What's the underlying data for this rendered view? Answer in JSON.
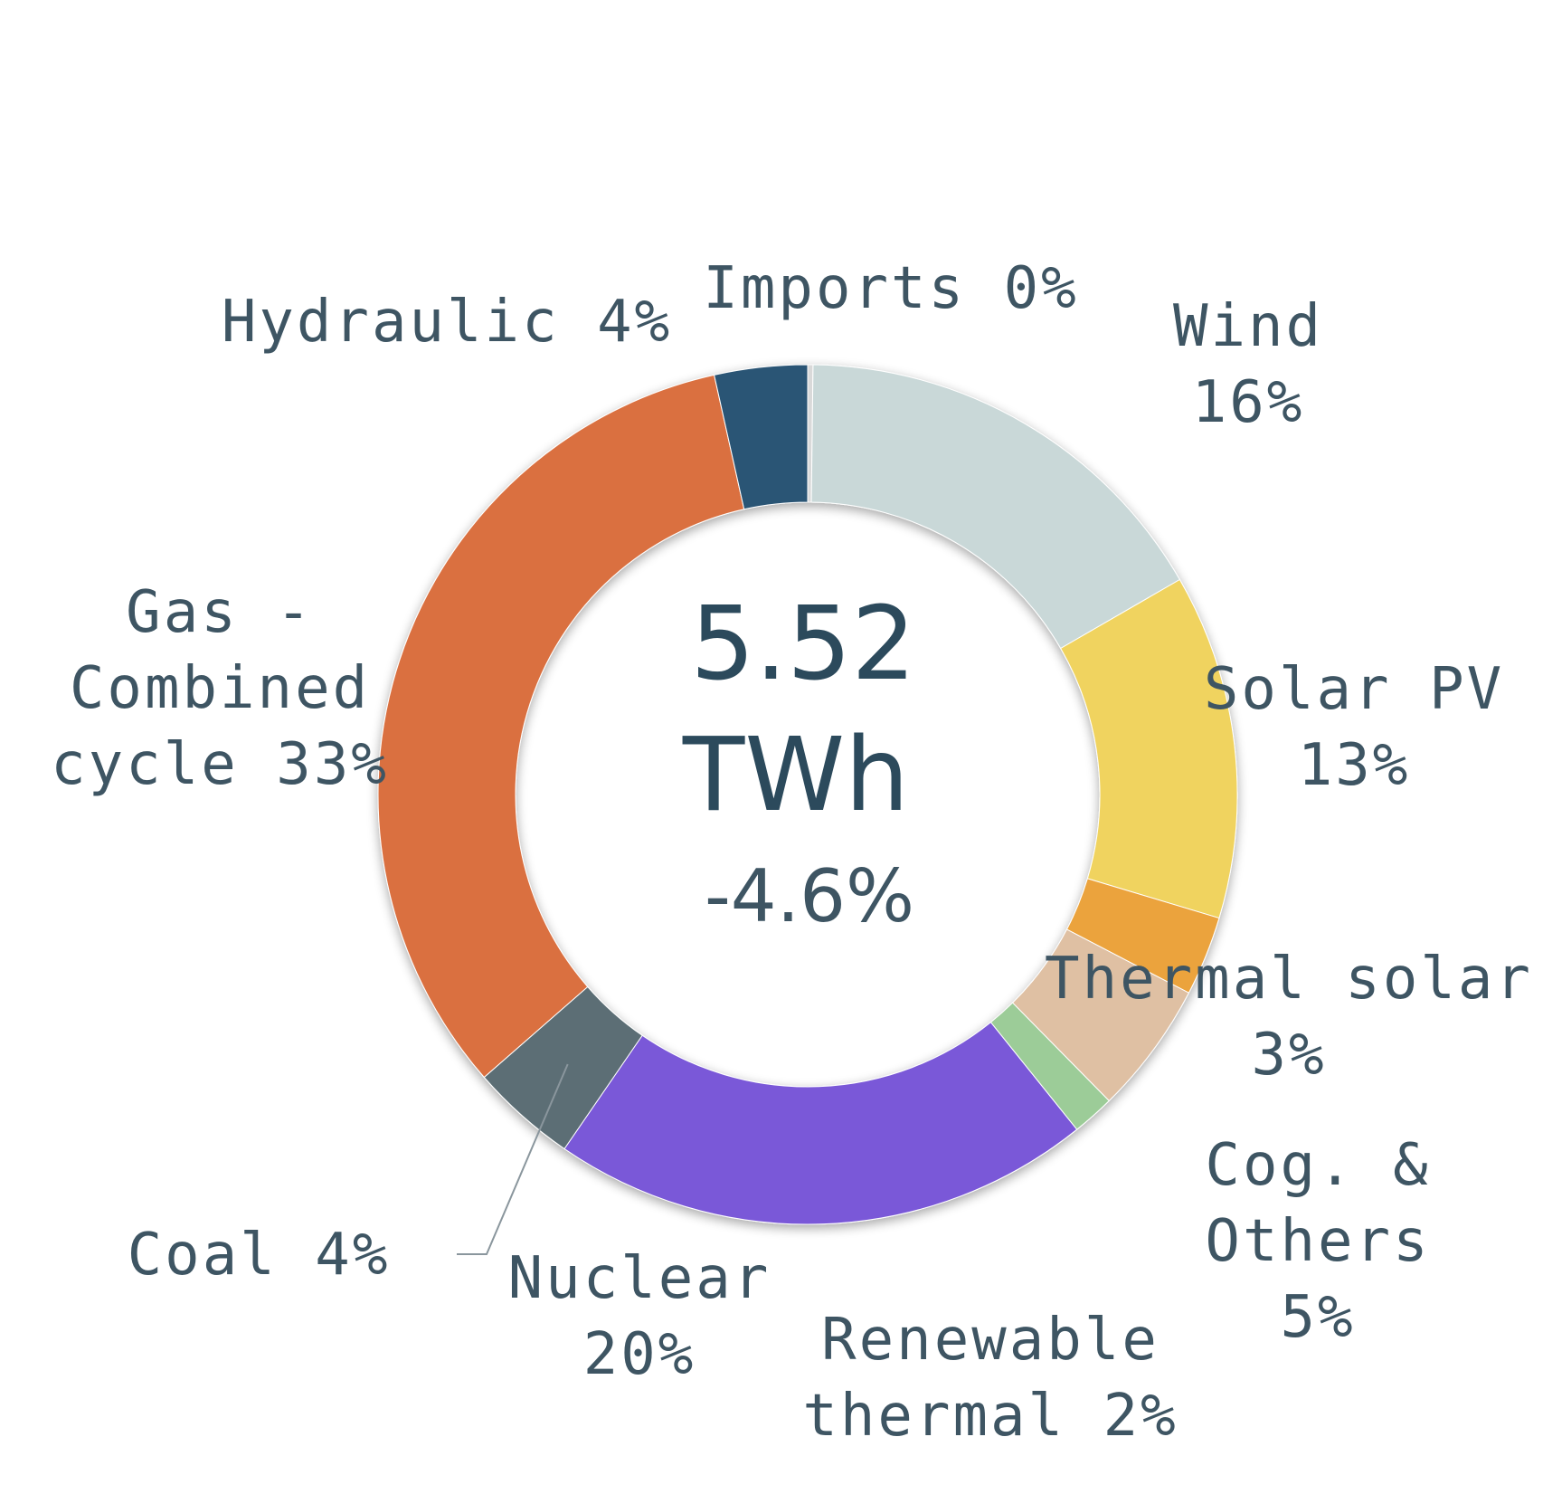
{
  "chart_data": {
    "type": "pie",
    "donut": true,
    "center": {
      "total_value": "5.52",
      "total_unit": "TWh",
      "change": "-4.6%"
    },
    "slices": [
      {
        "id": "imports",
        "label_lines": [
          "Imports 0%"
        ],
        "value": 0.2,
        "color": "#d9d9d9"
      },
      {
        "id": "wind",
        "label_lines": [
          "Wind",
          "16%"
        ],
        "value": 16.5,
        "color": "#c9d8d8"
      },
      {
        "id": "solar-pv",
        "label_lines": [
          "Solar PV",
          "13%"
        ],
        "value": 13,
        "color": "#f0d35e"
      },
      {
        "id": "thermal-solar",
        "label_lines": [
          "Thermal solar",
          "3%"
        ],
        "value": 3,
        "color": "#eba33c"
      },
      {
        "id": "cog-others",
        "label_lines": [
          "Cog. &",
          "Others",
          "5%"
        ],
        "value": 5,
        "color": "#dfc0a3"
      },
      {
        "id": "renewable-thermal",
        "label_lines": [
          "Renewable",
          "thermal 2%"
        ],
        "value": 1.6,
        "color": "#9ccc98"
      },
      {
        "id": "nuclear",
        "label_lines": [
          "Nuclear",
          "20%"
        ],
        "value": 20.4,
        "color": "#7a58d8"
      },
      {
        "id": "coal",
        "label_lines": [
          "Coal 4%"
        ],
        "value": 4,
        "color": "#5b6e74"
      },
      {
        "id": "gas-combined-cycle",
        "label_lines": [
          "Gas -",
          "Combined",
          "cycle 33%"
        ],
        "value": 33,
        "color": "#da703f"
      },
      {
        "id": "hydraulic",
        "label_lines": [
          "Hydraulic 4%"
        ],
        "value": 3.5,
        "color": "#2b5474"
      }
    ]
  }
}
